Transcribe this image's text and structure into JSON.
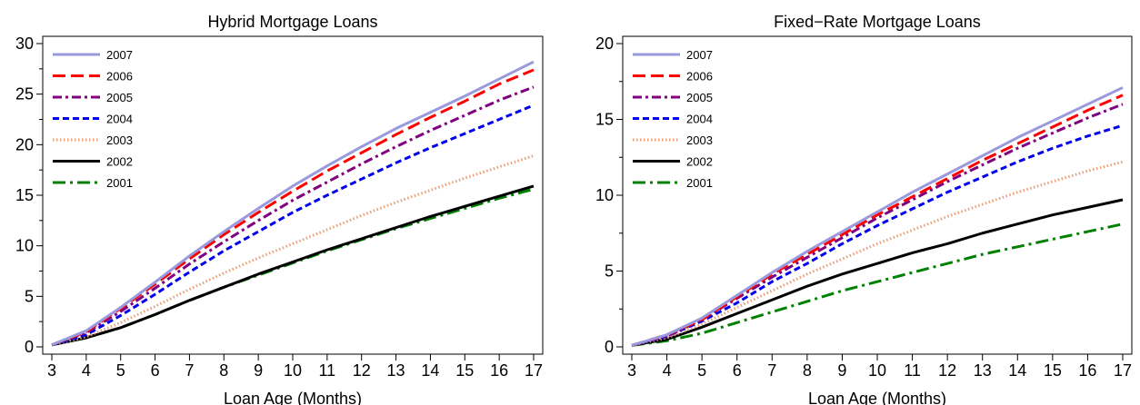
{
  "chart_data": [
    {
      "type": "line",
      "title": "Hybrid Mortgage Loans",
      "xlabel": "Loan Age (Months)",
      "ylabel": "",
      "x": [
        3,
        4,
        5,
        6,
        7,
        8,
        9,
        10,
        11,
        12,
        13,
        14,
        15,
        16,
        17
      ],
      "xlim": [
        3,
        17
      ],
      "ylim": [
        0,
        30
      ],
      "yticks": [
        0,
        5,
        10,
        15,
        20,
        25,
        30
      ],
      "grid": false,
      "legend": "top-left",
      "series": [
        {
          "name": "2007",
          "color": "#9999dd",
          "dash": "solid",
          "values": [
            0.2,
            1.6,
            3.9,
            6.4,
            9.0,
            11.4,
            13.7,
            15.9,
            17.9,
            19.8,
            21.6,
            23.2,
            24.8,
            26.5,
            28.2
          ]
        },
        {
          "name": "2006",
          "color": "#ff0000",
          "dash": "longdash",
          "values": [
            0.2,
            1.5,
            3.8,
            6.2,
            8.7,
            11.1,
            13.3,
            15.4,
            17.4,
            19.2,
            21.0,
            22.7,
            24.3,
            26.0,
            27.4
          ]
        },
        {
          "name": "2005",
          "color": "#800080",
          "dash": "dashdot",
          "values": [
            0.2,
            1.4,
            3.5,
            5.8,
            8.2,
            10.4,
            12.5,
            14.5,
            16.3,
            18.1,
            19.8,
            21.4,
            22.9,
            24.4,
            25.7
          ]
        },
        {
          "name": "2004",
          "color": "#0000ee",
          "dash": "dash",
          "values": [
            0.2,
            1.2,
            3.1,
            5.2,
            7.4,
            9.5,
            11.4,
            13.3,
            15.0,
            16.6,
            18.2,
            19.7,
            21.1,
            22.5,
            23.9
          ]
        },
        {
          "name": "2003",
          "color": "#e8a07a",
          "dash": "dotted",
          "values": [
            0.2,
            1.0,
            2.4,
            4.0,
            5.7,
            7.3,
            8.8,
            10.2,
            11.6,
            13.0,
            14.3,
            15.5,
            16.7,
            17.8,
            18.9
          ]
        },
        {
          "name": "2002",
          "color": "#000000",
          "dash": "solid",
          "values": [
            0.2,
            0.9,
            1.9,
            3.2,
            4.6,
            5.9,
            7.2,
            8.4,
            9.6,
            10.7,
            11.8,
            12.9,
            13.9,
            14.9,
            15.9
          ]
        },
        {
          "name": "2001",
          "color": "#008000",
          "dash": "longdashdot",
          "values": [
            0.2,
            0.9,
            1.9,
            3.2,
            4.6,
            5.9,
            7.1,
            8.3,
            9.5,
            10.6,
            11.7,
            12.7,
            13.7,
            14.7,
            15.6
          ]
        }
      ]
    },
    {
      "type": "line",
      "title": "Fixed−Rate Mortgage Loans",
      "xlabel": "Loan Age (Months)",
      "ylabel": "",
      "x": [
        3,
        4,
        5,
        6,
        7,
        8,
        9,
        10,
        11,
        12,
        13,
        14,
        15,
        16,
        17
      ],
      "xlim": [
        3,
        17
      ],
      "ylim": [
        0,
        20
      ],
      "yticks": [
        0,
        5,
        10,
        15,
        20
      ],
      "grid": false,
      "legend": "top-left",
      "series": [
        {
          "name": "2007",
          "color": "#9999dd",
          "dash": "solid",
          "values": [
            0.1,
            0.8,
            1.9,
            3.4,
            4.9,
            6.3,
            7.6,
            8.9,
            10.2,
            11.4,
            12.6,
            13.8,
            14.9,
            16.0,
            17.1
          ]
        },
        {
          "name": "2006",
          "color": "#ff0000",
          "dash": "longdash",
          "values": [
            0.1,
            0.8,
            1.8,
            3.3,
            4.8,
            6.1,
            7.4,
            8.7,
            9.9,
            11.1,
            12.3,
            13.4,
            14.5,
            15.6,
            16.6
          ]
        },
        {
          "name": "2005",
          "color": "#800080",
          "dash": "dashdot",
          "values": [
            0.1,
            0.7,
            1.8,
            3.2,
            4.6,
            5.9,
            7.2,
            8.5,
            9.7,
            10.9,
            12.0,
            13.1,
            14.1,
            15.1,
            16.0
          ]
        },
        {
          "name": "2004",
          "color": "#0000ee",
          "dash": "dash",
          "values": [
            0.1,
            0.7,
            1.7,
            2.9,
            4.3,
            5.5,
            6.8,
            8.0,
            9.1,
            10.2,
            11.2,
            12.2,
            13.1,
            13.9,
            14.6
          ]
        },
        {
          "name": "2003",
          "color": "#e8a07a",
          "dash": "dotted",
          "values": [
            0.1,
            0.6,
            1.5,
            2.6,
            3.7,
            4.8,
            5.8,
            6.8,
            7.7,
            8.6,
            9.4,
            10.2,
            10.9,
            11.6,
            12.2
          ]
        },
        {
          "name": "2002",
          "color": "#000000",
          "dash": "solid",
          "values": [
            0.1,
            0.5,
            1.3,
            2.2,
            3.1,
            4.0,
            4.8,
            5.5,
            6.2,
            6.8,
            7.5,
            8.1,
            8.7,
            9.2,
            9.7
          ]
        },
        {
          "name": "2001",
          "color": "#008000",
          "dash": "longdashdot",
          "values": [
            0.1,
            0.4,
            0.9,
            1.6,
            2.3,
            3.0,
            3.7,
            4.3,
            4.9,
            5.5,
            6.1,
            6.6,
            7.1,
            7.6,
            8.1
          ]
        }
      ]
    }
  ]
}
